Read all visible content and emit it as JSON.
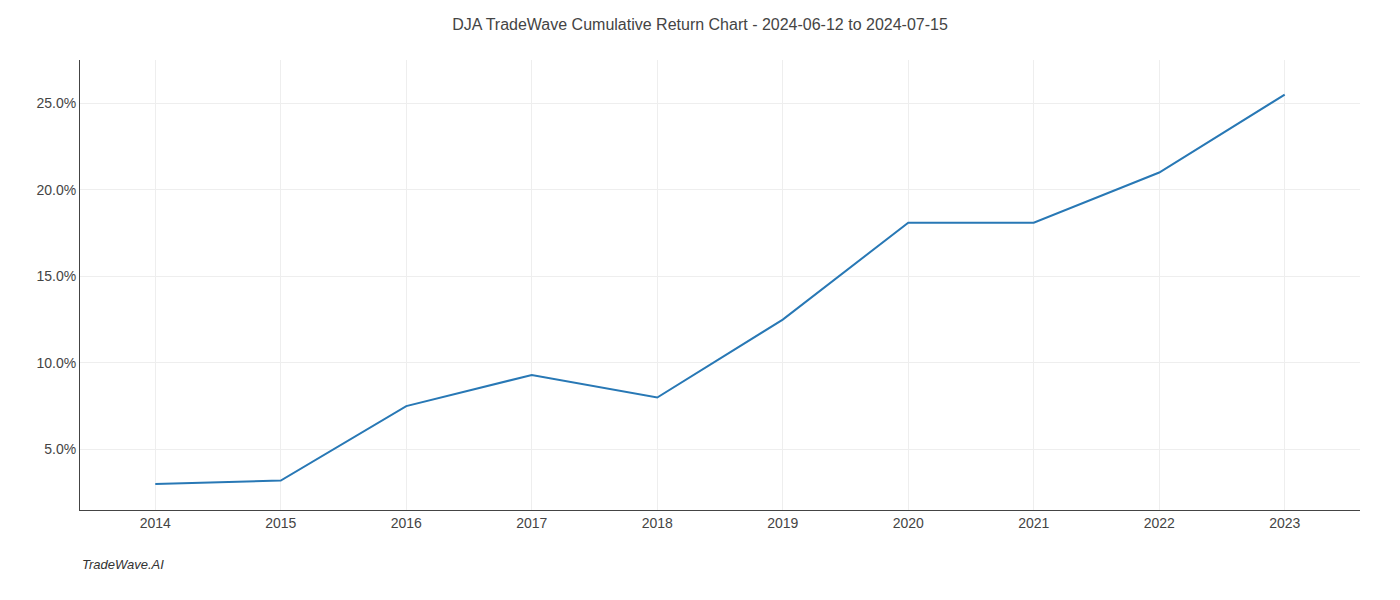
{
  "chart_data": {
    "type": "line",
    "title": "DJA TradeWave Cumulative Return Chart - 2024-06-12 to 2024-07-15",
    "annotations": [
      "TradeWave.AI"
    ],
    "x": [
      2014,
      2015,
      2016,
      2017,
      2018,
      2019,
      2020,
      2021,
      2022,
      2023
    ],
    "values": [
      3.0,
      3.2,
      7.5,
      9.3,
      8.0,
      12.5,
      18.1,
      18.1,
      21.0,
      25.5
    ],
    "color": "#2878b5",
    "xlim": [
      2013.4,
      2023.6
    ],
    "ylim": [
      1.5,
      27.5
    ],
    "xticks": [
      2014,
      2015,
      2016,
      2017,
      2018,
      2019,
      2020,
      2021,
      2022,
      2023
    ],
    "yticks": [
      {
        "value": 5.0,
        "label": "5.0%"
      },
      {
        "value": 10.0,
        "label": "10.0%"
      },
      {
        "value": 15.0,
        "label": "15.0%"
      },
      {
        "value": 20.0,
        "label": "20.0%"
      },
      {
        "value": 25.0,
        "label": "25.0%"
      }
    ],
    "grid": true
  }
}
